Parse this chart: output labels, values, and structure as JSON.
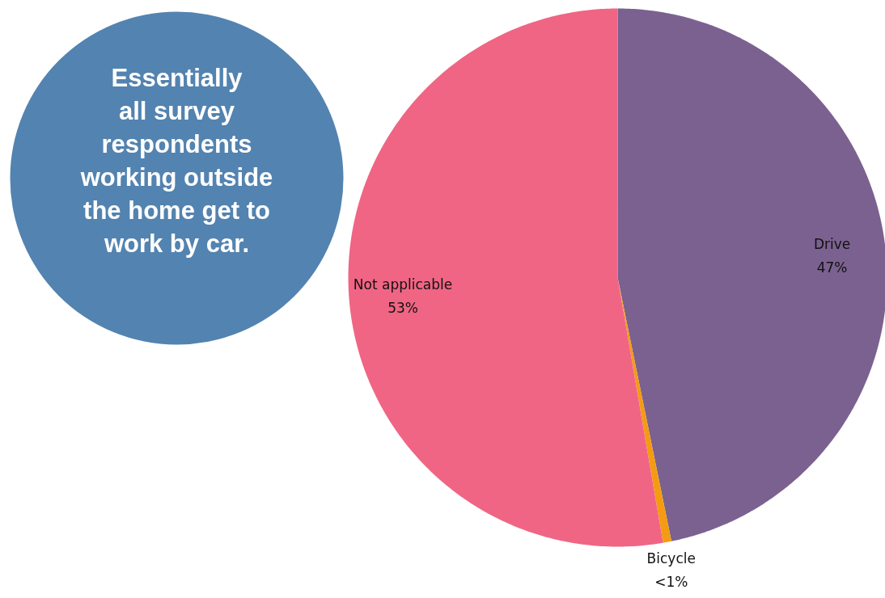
{
  "chart_data": {
    "type": "pie",
    "categories": [
      "Drive",
      "Bicycle",
      "Not applicable"
    ],
    "values": [
      46.8,
      0.5,
      52.7
    ],
    "value_labels": [
      "47%",
      "<1%",
      "53%"
    ],
    "colors": [
      "#7b6190",
      "#f39c12",
      "#f06584"
    ],
    "annotations": [
      "Essentially\nall survey\nrespondents\nworking outside\nthe home get to\nwork by car."
    ]
  }
}
